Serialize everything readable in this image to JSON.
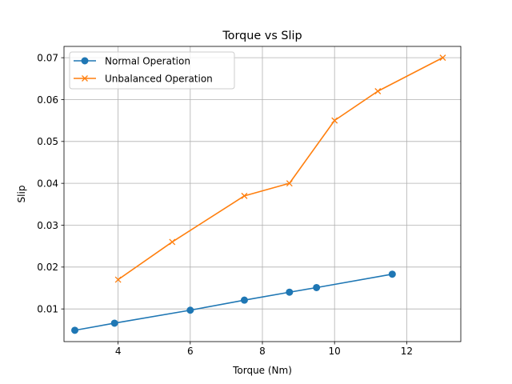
{
  "chart_data": {
    "type": "line",
    "title": "Torque vs Slip",
    "xlabel": "Torque (Nm)",
    "ylabel": "Slip",
    "xlim": [
      2.5,
      13.5
    ],
    "ylim": [
      0.0022,
      0.0727
    ],
    "xticks": [
      4,
      6,
      8,
      10,
      12
    ],
    "xtick_labels": [
      "4",
      "6",
      "8",
      "10",
      "12"
    ],
    "yticks": [
      0.01,
      0.02,
      0.03,
      0.04,
      0.05,
      0.06,
      0.07
    ],
    "ytick_labels": [
      "0.01",
      "0.02",
      "0.03",
      "0.04",
      "0.05",
      "0.06",
      "0.07"
    ],
    "grid": true,
    "legend_position": "top-left",
    "series": [
      {
        "name": "Normal Operation",
        "color": "#1f77b4",
        "marker": "circle",
        "x": [
          2.8,
          3.9,
          6.0,
          7.5,
          8.75,
          9.5,
          11.6
        ],
        "y": [
          0.0049,
          0.0066,
          0.0097,
          0.0121,
          0.014,
          0.0151,
          0.0183
        ]
      },
      {
        "name": "Unbalanced Operation",
        "color": "#ff7f0e",
        "marker": "x",
        "x": [
          4.0,
          5.5,
          7.5,
          8.75,
          10.0,
          11.2,
          13.0
        ],
        "y": [
          0.017,
          0.026,
          0.037,
          0.04,
          0.055,
          0.062,
          0.07
        ]
      }
    ]
  }
}
